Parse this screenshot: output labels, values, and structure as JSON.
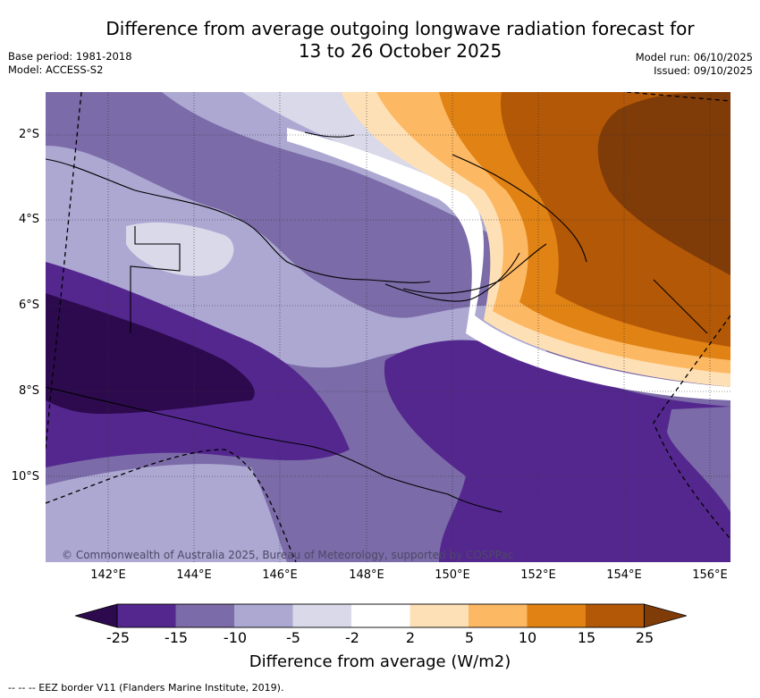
{
  "title": {
    "line1": "Difference from average outgoing longwave radiation forecast for",
    "line2": "13 to 26 October 2025"
  },
  "meta": {
    "base_period": "Base period: 1981-2018",
    "model": "Model: ACCESS-S2",
    "model_run": "Model run: 06/10/2025",
    "issued": "Issued: 09/10/2025"
  },
  "map": {
    "lat_labels": [
      "2°S",
      "4°S",
      "6°S",
      "8°S",
      "10°S"
    ],
    "lon_labels": [
      "142°E",
      "144°E",
      "146°E",
      "148°E",
      "150°E",
      "152°E",
      "154°E",
      "156°E"
    ],
    "copyright": "© Commonwealth of Australia 2025, Bureau of Meteorology, supported by COSPPac"
  },
  "colorbar": {
    "ticks": [
      "-25",
      "-15",
      "-10",
      "-5",
      "-2",
      "2",
      "5",
      "10",
      "15",
      "25"
    ],
    "colors": [
      "#2d0a4e",
      "#54278f",
      "#7b6ba8",
      "#aca8d2",
      "#d9d9ea",
      "#ffffff",
      "#fee0b6",
      "#fdb863",
      "#e08214",
      "#b35806",
      "#7f3b08"
    ],
    "title": "Difference from average (W/m2)"
  },
  "legend": {
    "eez_label": "--  --  -- EEZ border V11 (Flanders Marine Institute, 2019)."
  }
}
